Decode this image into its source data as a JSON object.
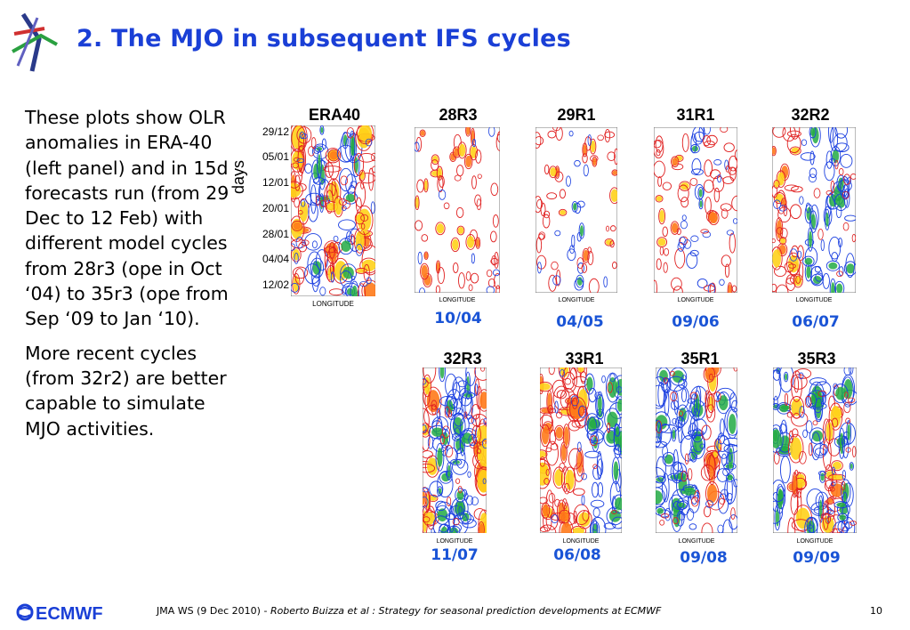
{
  "header": {
    "title": "2. The MJO in subsequent IFS cycles"
  },
  "text": {
    "paragraph1": "These plots show OLR anomalies in ERA-40 (left panel) and in 15d forecasts run (from 29 Dec to 12 Feb) with different model cycles from 28r3 (ope in Oct ‘04) to 35r3 (ope from Sep ‘09 to Jan ‘10).",
    "paragraph2": "More recent cycles (from 32r2) are better capable to simulate MJO activities."
  },
  "era40": {
    "title": "ERA40",
    "ylabel": "days",
    "yticks": [
      "29/12",
      "05/01",
      "12/01",
      "20/01",
      "28/01",
      "04/04",
      "12/02"
    ],
    "xlabel": "LONGITUDE"
  },
  "panels_top": [
    {
      "title": "28R3",
      "date": "10/04"
    },
    {
      "title": "29R1",
      "date": "04/05"
    },
    {
      "title": "31R1",
      "date": "09/06"
    },
    {
      "title": "32R2",
      "date": "06/07"
    }
  ],
  "panels_bottom": [
    {
      "title": "32R3",
      "date": "11/07"
    },
    {
      "title": "33R1",
      "date": "06/08"
    },
    {
      "title": "35R1",
      "date": "09/08"
    },
    {
      "title": "35R3",
      "date": "09/09"
    }
  ],
  "small_xlabel": "LONGITUDE",
  "colors": {
    "title_blue": "#1a3fd6",
    "date_blue": "#1a54d6",
    "contour_red": "#e02020",
    "contour_blue": "#1a3fe0",
    "fill_orange": "#ff7a1a",
    "fill_yellow": "#ffd21a",
    "fill_green": "#22aa44"
  },
  "footer": {
    "logo_text": "ECMWF",
    "meeting": "JMA WS (9 Dec 2010) - ",
    "citation": "Roberto Buizza et al : Strategy for seasonal prediction developments at ECMWF",
    "page_number": "10"
  }
}
